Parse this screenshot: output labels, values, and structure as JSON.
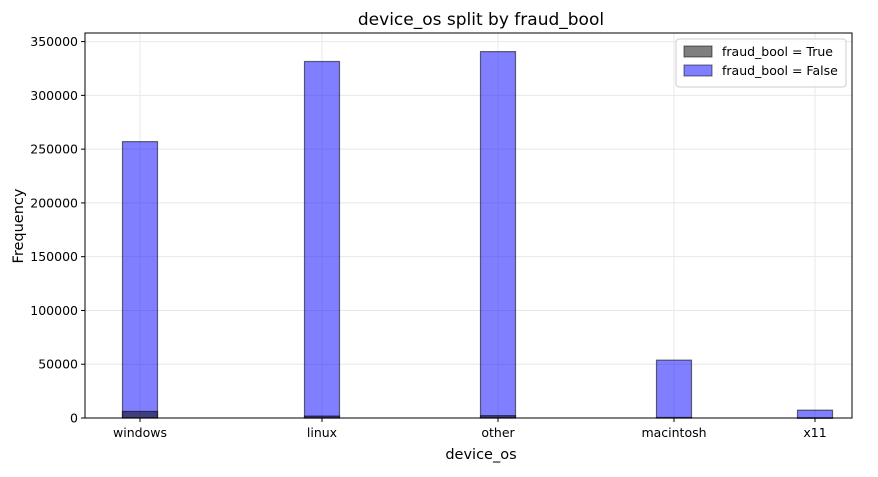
{
  "chart_data": {
    "type": "bar",
    "title": "device_os split by fraud_bool",
    "xlabel": "device_os",
    "ylabel": "Frequency",
    "categories": [
      "windows",
      "linux",
      "other",
      "macintosh",
      "x11"
    ],
    "series": [
      {
        "name": "fraud_bool = True",
        "values": [
          6100,
          1800,
          2200,
          500,
          150
        ],
        "color": "#000000",
        "opacity": 0.5
      },
      {
        "name": "fraud_bool = False",
        "values": [
          257000,
          331500,
          340700,
          53800,
          7300
        ],
        "color": "#0000ff",
        "opacity": 0.5
      }
    ],
    "ylim": [
      0,
      358000
    ],
    "yticks": [
      0,
      50000,
      100000,
      150000,
      200000,
      250000,
      300000,
      350000
    ],
    "ytick_labels": [
      "0",
      "50000",
      "100000",
      "150000",
      "200000",
      "250000",
      "300000",
      "350000"
    ],
    "grid": true,
    "legend_position": "top-right",
    "colors": {
      "true_series": "#808080",
      "false_series": "#8080ff",
      "edge": "#333366",
      "grid": "#e8e8e8"
    }
  }
}
